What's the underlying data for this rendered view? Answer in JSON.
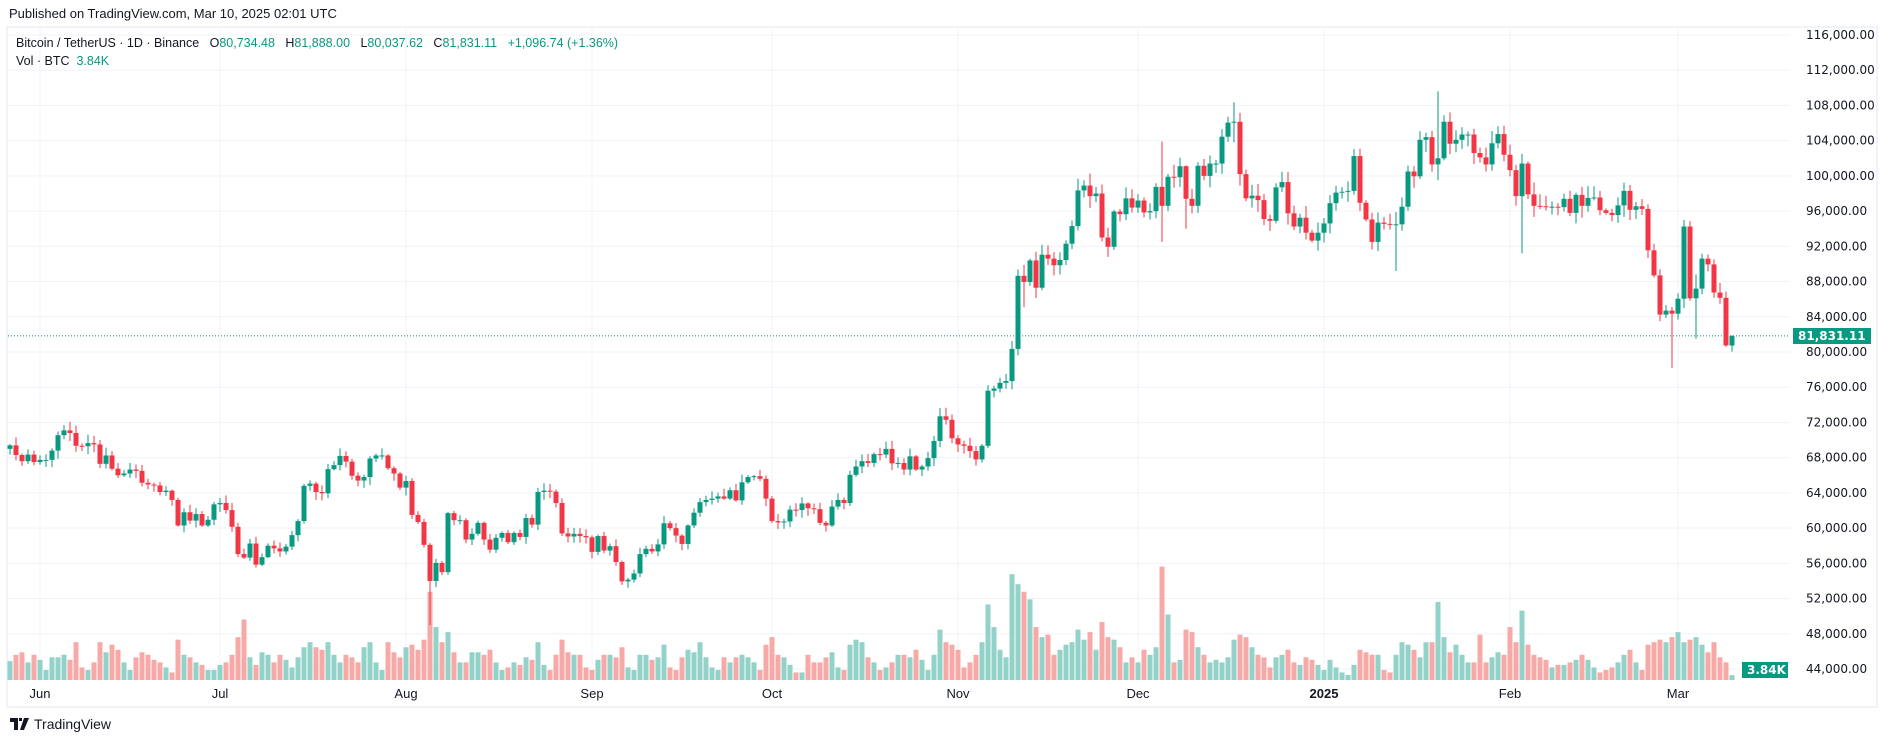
{
  "published": "Published on TradingView.com, Mar 10, 2025 02:01 UTC",
  "legend": {
    "symbol": "Bitcoin / TetherUS · 1D · Binance",
    "o_label": "O",
    "o": "80,734.48",
    "h_label": "H",
    "h": "81,888.00",
    "l_label": "L",
    "l": "80,037.62",
    "c_label": "C",
    "c": "81,831.11",
    "change": "+1,096.74 (+1.36%)",
    "vol_label": "Vol · BTC",
    "vol": "3.84K"
  },
  "badges": {
    "price": "81,831.11",
    "volume": "3.84K"
  },
  "brand": "TradingView",
  "colors": {
    "up": "#089981",
    "down": "#f23645",
    "vol_up": "#92d2c8",
    "vol_down": "#f7a9a7"
  },
  "chart_data": {
    "type": "candlestick",
    "title": "Bitcoin / TetherUS · 1D · Binance",
    "start_date": "2024-05-27",
    "ylim": [
      44000,
      116000
    ],
    "y_ticks": [
      "116,000.00",
      "112,000.00",
      "108,000.00",
      "104,000.00",
      "100,000.00",
      "96,000.00",
      "92,000.00",
      "88,000.00",
      "84,000.00",
      "80,000.00",
      "76,000.00",
      "72,000.00",
      "68,000.00",
      "64,000.00",
      "60,000.00",
      "56,000.00",
      "52,000.00",
      "48,000.00",
      "44,000.00"
    ],
    "x_ticks": [
      {
        "label": "Jun",
        "day": 5
      },
      {
        "label": "Jul",
        "day": 35
      },
      {
        "label": "Aug",
        "day": 66
      },
      {
        "label": "Sep",
        "day": 97
      },
      {
        "label": "Oct",
        "day": 127
      },
      {
        "label": "Nov",
        "day": 158
      },
      {
        "label": "Dec",
        "day": 188
      },
      {
        "label": "2025",
        "day": 219,
        "bold": true
      },
      {
        "label": "Feb",
        "day": 250
      },
      {
        "label": "Mar",
        "day": 278
      }
    ],
    "first_open": 69000,
    "closes": [
      69400,
      68300,
      67600,
      68350,
      67500,
      67750,
      67750,
      68800,
      70550,
      71100,
      70800,
      69350,
      69300,
      69650,
      69500,
      67300,
      68250,
      66750,
      66000,
      66200,
      66650,
      66500,
      65150,
      64950,
      64850,
      64100,
      64250,
      63200,
      60300,
      61800,
      60850,
      61600,
      60300,
      60950,
      62700,
      62850,
      62050,
      60150,
      57050,
      56650,
      58250,
      55850,
      56700,
      58000,
      57700,
      57350,
      57900,
      59200,
      60800,
      64800,
      65050,
      64100,
      63950,
      66700,
      67150,
      68200,
      67550,
      65950,
      65400,
      65800,
      67900,
      68250,
      68250,
      66800,
      66200,
      64600,
      65350,
      61500,
      60700,
      58100,
      54000,
      56050,
      55000,
      61700,
      60900,
      60900,
      58700,
      59350,
      60600,
      58700,
      57550,
      58900,
      59450,
      58400,
      59450,
      59000,
      61150,
      60400,
      64100,
      64250,
      64150,
      62850,
      59400,
      59050,
      59350,
      59100,
      58950,
      57300,
      59100,
      57450,
      57950,
      56150,
      53950,
      54150,
      54850,
      57050,
      57650,
      57350,
      58150,
      60550,
      60000,
      59150,
      58200,
      60300,
      61750,
      62950,
      63200,
      63350,
      63600,
      63350,
      64300,
      63150,
      65200,
      65800,
      65900,
      65600,
      63350,
      60800,
      60650,
      60750,
      62100,
      62050,
      62800,
      62250,
      62150,
      60600,
      60300,
      62450,
      63200,
      62850,
      66050,
      67000,
      67600,
      67400,
      68400,
      68350,
      69000,
      67350,
      67400,
      66650,
      68150,
      66650,
      67000,
      67950,
      69900,
      72700,
      72300,
      70200,
      69500,
      69350,
      68750,
      67800,
      69350,
      75600,
      75850,
      76500,
      76700,
      80350,
      88650,
      87950,
      90400,
      87300,
      91050,
      90600,
      89850,
      90450,
      92300,
      94300,
      98350,
      98900,
      97700,
      98000,
      93000,
      91950,
      95950,
      95650,
      97450,
      96400,
      97200,
      95850,
      96000,
      98750,
      96600,
      99900,
      99850,
      101100,
      97400,
      96600,
      101150,
      100000,
      101400,
      101400,
      104450,
      106050,
      106150,
      100200,
      97450,
      97750,
      97250,
      95100,
      94900,
      98700,
      99300,
      95750,
      94250,
      95250,
      93550,
      92650,
      93550,
      94600,
      96900,
      98100,
      98200,
      98300,
      102250,
      96950,
      95050,
      92500,
      94700,
      94550,
      94500,
      94500,
      96500,
      100500,
      99950,
      104100,
      104400,
      101300,
      102000,
      106150,
      103650,
      104100,
      104700,
      104700,
      102600,
      102100,
      101300,
      103700,
      104750,
      102400,
      100650,
      97700,
      101400,
      97900,
      96600,
      96550,
      96450,
      96500,
      96450,
      97400,
      95800,
      97850,
      96600,
      97500,
      97550,
      96100,
      95800,
      95550,
      96650,
      98300,
      96150,
      96550,
      96250,
      91550,
      88700,
      84250,
      84700,
      84350,
      86050,
      94250,
      86100,
      87200,
      90600,
      89950,
      86750,
      86150,
      80750,
      81831.11
    ],
    "extremes": {
      "70": [
        58300,
        49000
      ],
      "169": [
        89900,
        85100
      ],
      "192": [
        103900,
        92500
      ],
      "196": [
        101200,
        94000
      ],
      "204": [
        108350,
        103800
      ],
      "231": [
        95900,
        89200
      ],
      "238": [
        109600,
        99500
      ],
      "252": [
        102500,
        91200
      ],
      "277": [
        85100,
        78200
      ],
      "279": [
        95000,
        85000
      ],
      "281": [
        88800,
        81500
      ],
      "287": [
        81888,
        80037.62
      ]
    },
    "opens": {
      "287": 80734.48
    },
    "volume_unit": "K BTC",
    "volumes": [
      15,
      20,
      22,
      14,
      20,
      16,
      8,
      18,
      18,
      20,
      16,
      30,
      10,
      8,
      14,
      30,
      22,
      28,
      24,
      14,
      8,
      18,
      22,
      20,
      16,
      14,
      10,
      6,
      32,
      20,
      18,
      14,
      12,
      8,
      8,
      12,
      14,
      20,
      34,
      48,
      18,
      12,
      22,
      20,
      14,
      20,
      16,
      10,
      18,
      26,
      30,
      26,
      24,
      30,
      20,
      14,
      20,
      18,
      14,
      26,
      30,
      14,
      8,
      30,
      22,
      18,
      26,
      28,
      24,
      32,
      70,
      42,
      30,
      38,
      22,
      14,
      14,
      22,
      22,
      20,
      24,
      14,
      8,
      10,
      14,
      12,
      18,
      16,
      30,
      12,
      8,
      20,
      32,
      22,
      20,
      20,
      10,
      8,
      16,
      20,
      20,
      18,
      26,
      10,
      8,
      20,
      20,
      16,
      18,
      28,
      10,
      8,
      18,
      24,
      22,
      30,
      18,
      10,
      8,
      18,
      14,
      18,
      20,
      18,
      14,
      8,
      28,
      34,
      20,
      18,
      12,
      6,
      6,
      20,
      14,
      14,
      18,
      22,
      10,
      8,
      28,
      32,
      30,
      18,
      14,
      8,
      10,
      14,
      20,
      20,
      18,
      24,
      16,
      8,
      20,
      40,
      30,
      28,
      24,
      10,
      14,
      20,
      30,
      60,
      42,
      24,
      18,
      84,
      76,
      70,
      64,
      42,
      34,
      36,
      20,
      24,
      28,
      30,
      40,
      32,
      38,
      24,
      46,
      34,
      32,
      26,
      14,
      18,
      14,
      24,
      20,
      26,
      90,
      52,
      14,
      16,
      40,
      38,
      26,
      20,
      14,
      16,
      14,
      18,
      32,
      36,
      34,
      26,
      20,
      18,
      10,
      18,
      20,
      24,
      14,
      12,
      18,
      16,
      12,
      8,
      16,
      10,
      6,
      4,
      12,
      24,
      22,
      20,
      20,
      8,
      6,
      20,
      30,
      28,
      24,
      18,
      30,
      30,
      62,
      34,
      22,
      28,
      20,
      14,
      14,
      36,
      14,
      18,
      22,
      20,
      42,
      30,
      55,
      28,
      20,
      18,
      16,
      10,
      12,
      12,
      14,
      16,
      20,
      16,
      10,
      6,
      8,
      10,
      14,
      20,
      24,
      14,
      8,
      28,
      30,
      32,
      30,
      34,
      38,
      30,
      32,
      34,
      28,
      22,
      30,
      18,
      14,
      3.84
    ]
  }
}
